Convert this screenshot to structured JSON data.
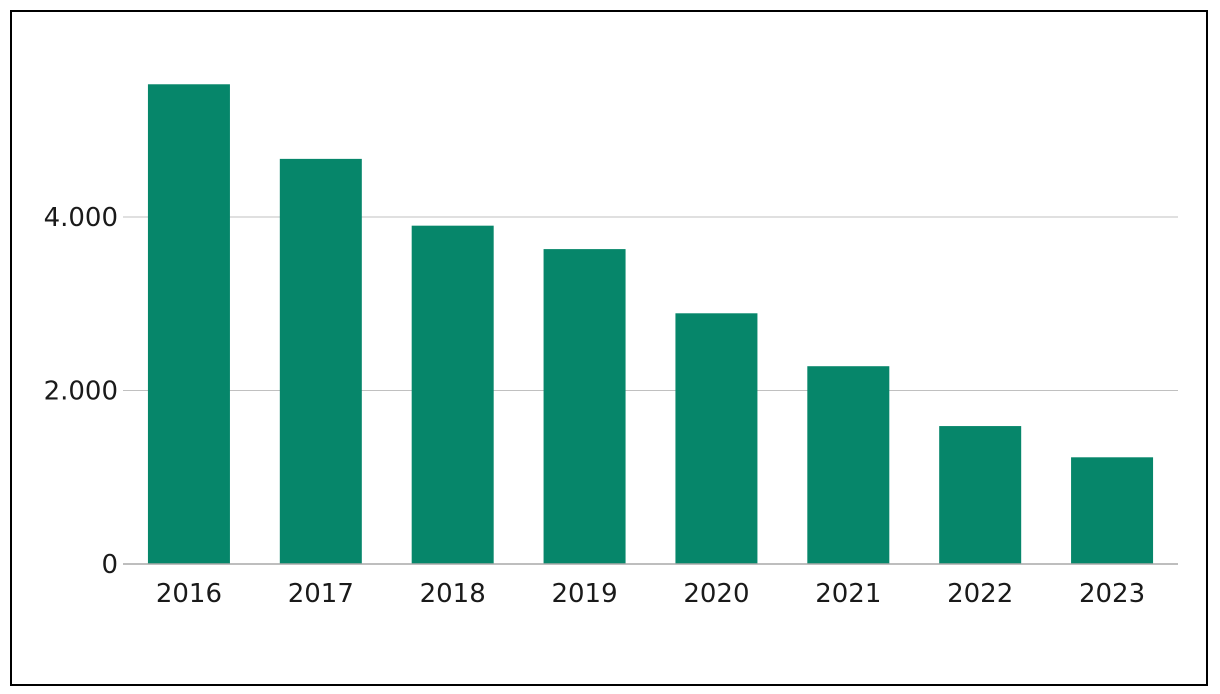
{
  "chart_data": {
    "type": "bar",
    "categories": [
      "2016",
      "2017",
      "2018",
      "2019",
      "2020",
      "2021",
      "2022",
      "2023"
    ],
    "values": [
      5530,
      4670,
      3900,
      3630,
      2890,
      2280,
      1590,
      1230
    ],
    "ylim": [
      0,
      6000
    ],
    "yticks": [
      0,
      2000,
      4000
    ],
    "ytick_labels": [
      "0",
      "2.000",
      "4.000"
    ],
    "title": "",
    "xlabel": "",
    "ylabel": "",
    "grid": true,
    "colors": {
      "bar": "#06866a",
      "grid": "#c0c0c0",
      "axis": "#a8a8a8"
    }
  }
}
